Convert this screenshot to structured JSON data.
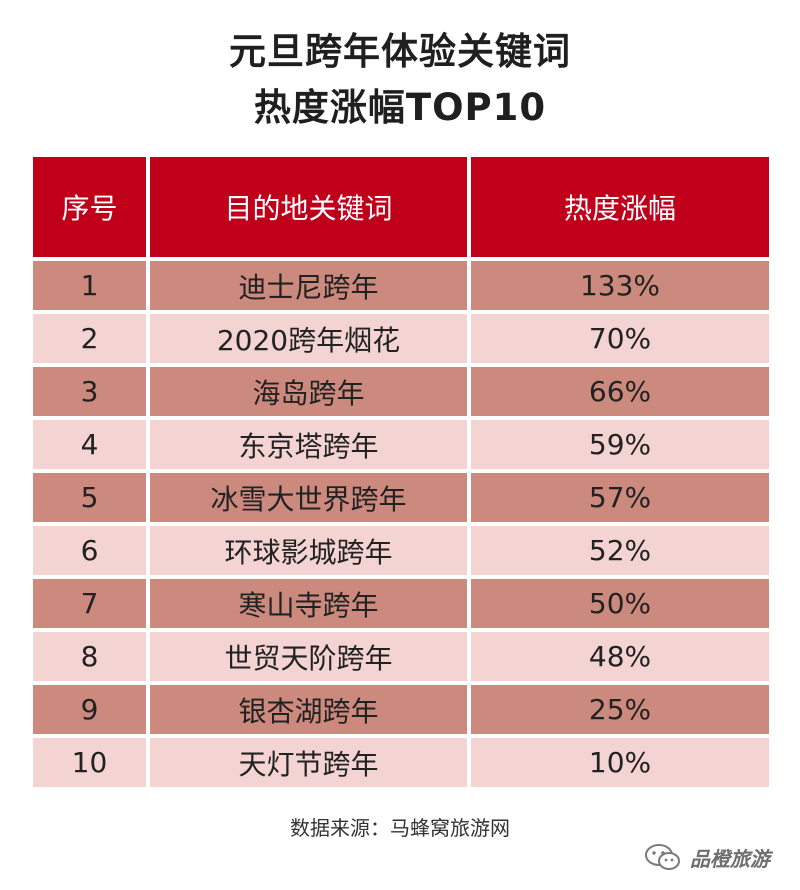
{
  "title": {
    "line1": "元旦跨年体验关键词",
    "line2": "热度涨幅TOP10"
  },
  "source": "数据来源：马蜂窝旅游网",
  "watermark": "品橙旅游",
  "colors": {
    "header_bg": "#c0001b",
    "row_dark": "#cc8a7e",
    "row_light": "#f3d4d2"
  },
  "chart_data": {
    "type": "table",
    "title": "元旦跨年体验关键词 热度涨幅TOP10",
    "columns": [
      "序号",
      "目的地关键词",
      "热度涨幅"
    ],
    "rows": [
      {
        "rank": "1",
        "keyword": "迪士尼跨年",
        "increase": "133%"
      },
      {
        "rank": "2",
        "keyword": "2020跨年烟花",
        "increase": "70%"
      },
      {
        "rank": "3",
        "keyword": "海岛跨年",
        "increase": "66%"
      },
      {
        "rank": "4",
        "keyword": "东京塔跨年",
        "increase": "59%"
      },
      {
        "rank": "5",
        "keyword": "冰雪大世界跨年",
        "increase": "57%"
      },
      {
        "rank": "6",
        "keyword": "环球影城跨年",
        "increase": "52%"
      },
      {
        "rank": "7",
        "keyword": "寒山寺跨年",
        "increase": "50%"
      },
      {
        "rank": "8",
        "keyword": "世贸天阶跨年",
        "increase": "48%"
      },
      {
        "rank": "9",
        "keyword": "银杏湖跨年",
        "increase": "25%"
      },
      {
        "rank": "10",
        "keyword": "天灯节跨年",
        "increase": "10%"
      }
    ]
  }
}
